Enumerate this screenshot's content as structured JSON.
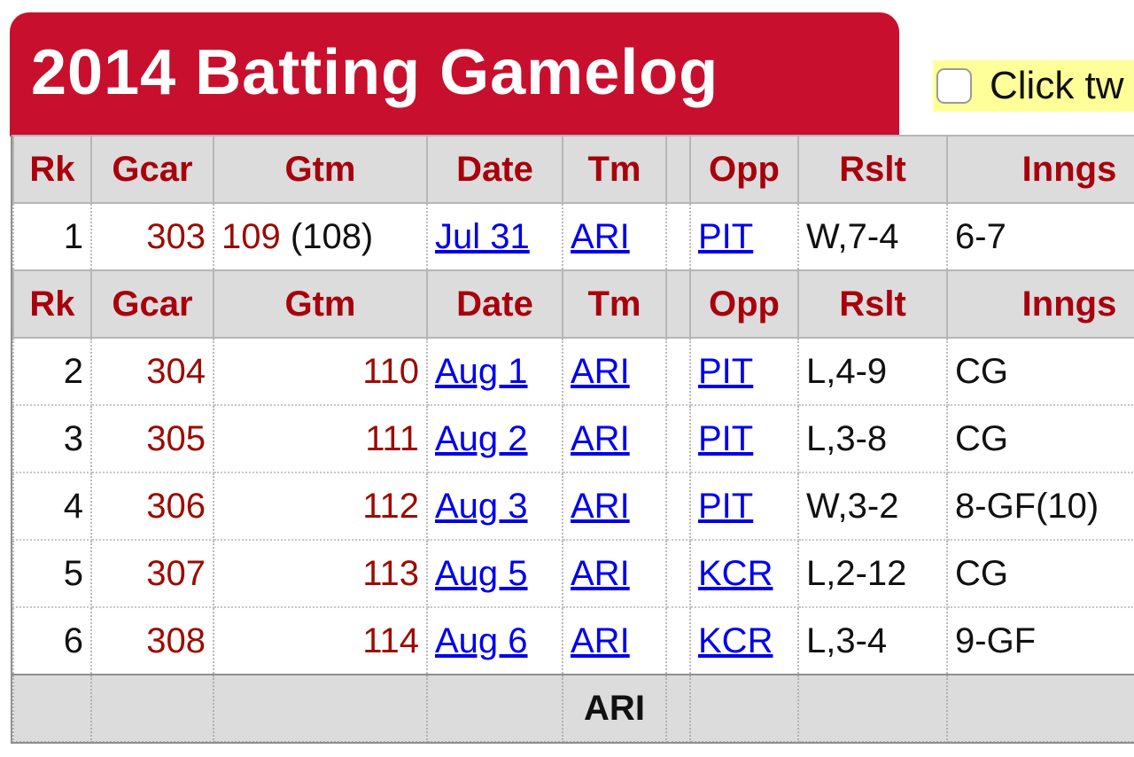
{
  "title": "2014 Batting Gamelog",
  "toggle": {
    "label": "Click tw"
  },
  "table": {
    "headers": {
      "rk": "Rk",
      "gcar": "Gcar",
      "gtm": "Gtm",
      "date": "Date",
      "tm": "Tm",
      "blank": "",
      "opp": "Opp",
      "rslt": "Rslt",
      "inngs": "Inngs"
    },
    "rows": [
      {
        "rk": "1",
        "gcar": "303",
        "gtm": "109",
        "gtm_sub": "(108)",
        "date": "Jul 31",
        "tm": "ARI",
        "opp": "PIT",
        "rslt": "W,7-4",
        "inngs": "6-7"
      },
      {
        "rk": "2",
        "gcar": "304",
        "gtm": "110",
        "gtm_sub": "",
        "date": "Aug 1",
        "tm": "ARI",
        "opp": "PIT",
        "rslt": "L,4-9",
        "inngs": "CG"
      },
      {
        "rk": "3",
        "gcar": "305",
        "gtm": "111",
        "gtm_sub": "",
        "date": "Aug 2",
        "tm": "ARI",
        "opp": "PIT",
        "rslt": "L,3-8",
        "inngs": "CG"
      },
      {
        "rk": "4",
        "gcar": "306",
        "gtm": "112",
        "gtm_sub": "",
        "date": "Aug 3",
        "tm": "ARI",
        "opp": "PIT",
        "rslt": "W,3-2",
        "inngs": "8-GF(10)"
      },
      {
        "rk": "5",
        "gcar": "307",
        "gtm": "113",
        "gtm_sub": "",
        "date": "Aug 5",
        "tm": "ARI",
        "opp": "KCR",
        "rslt": "L,2-12",
        "inngs": "CG"
      },
      {
        "rk": "6",
        "gcar": "308",
        "gtm": "114",
        "gtm_sub": "",
        "date": "Aug 6",
        "tm": "ARI",
        "opp": "KCR",
        "rslt": "L,3-4",
        "inngs": "9-GF"
      }
    ],
    "totals": {
      "tm": "ARI"
    }
  },
  "colors": {
    "brand_red": "#c8102e",
    "header_text": "#a8000c",
    "link": "#0000ee",
    "toggle_bg": "#ffff99"
  }
}
